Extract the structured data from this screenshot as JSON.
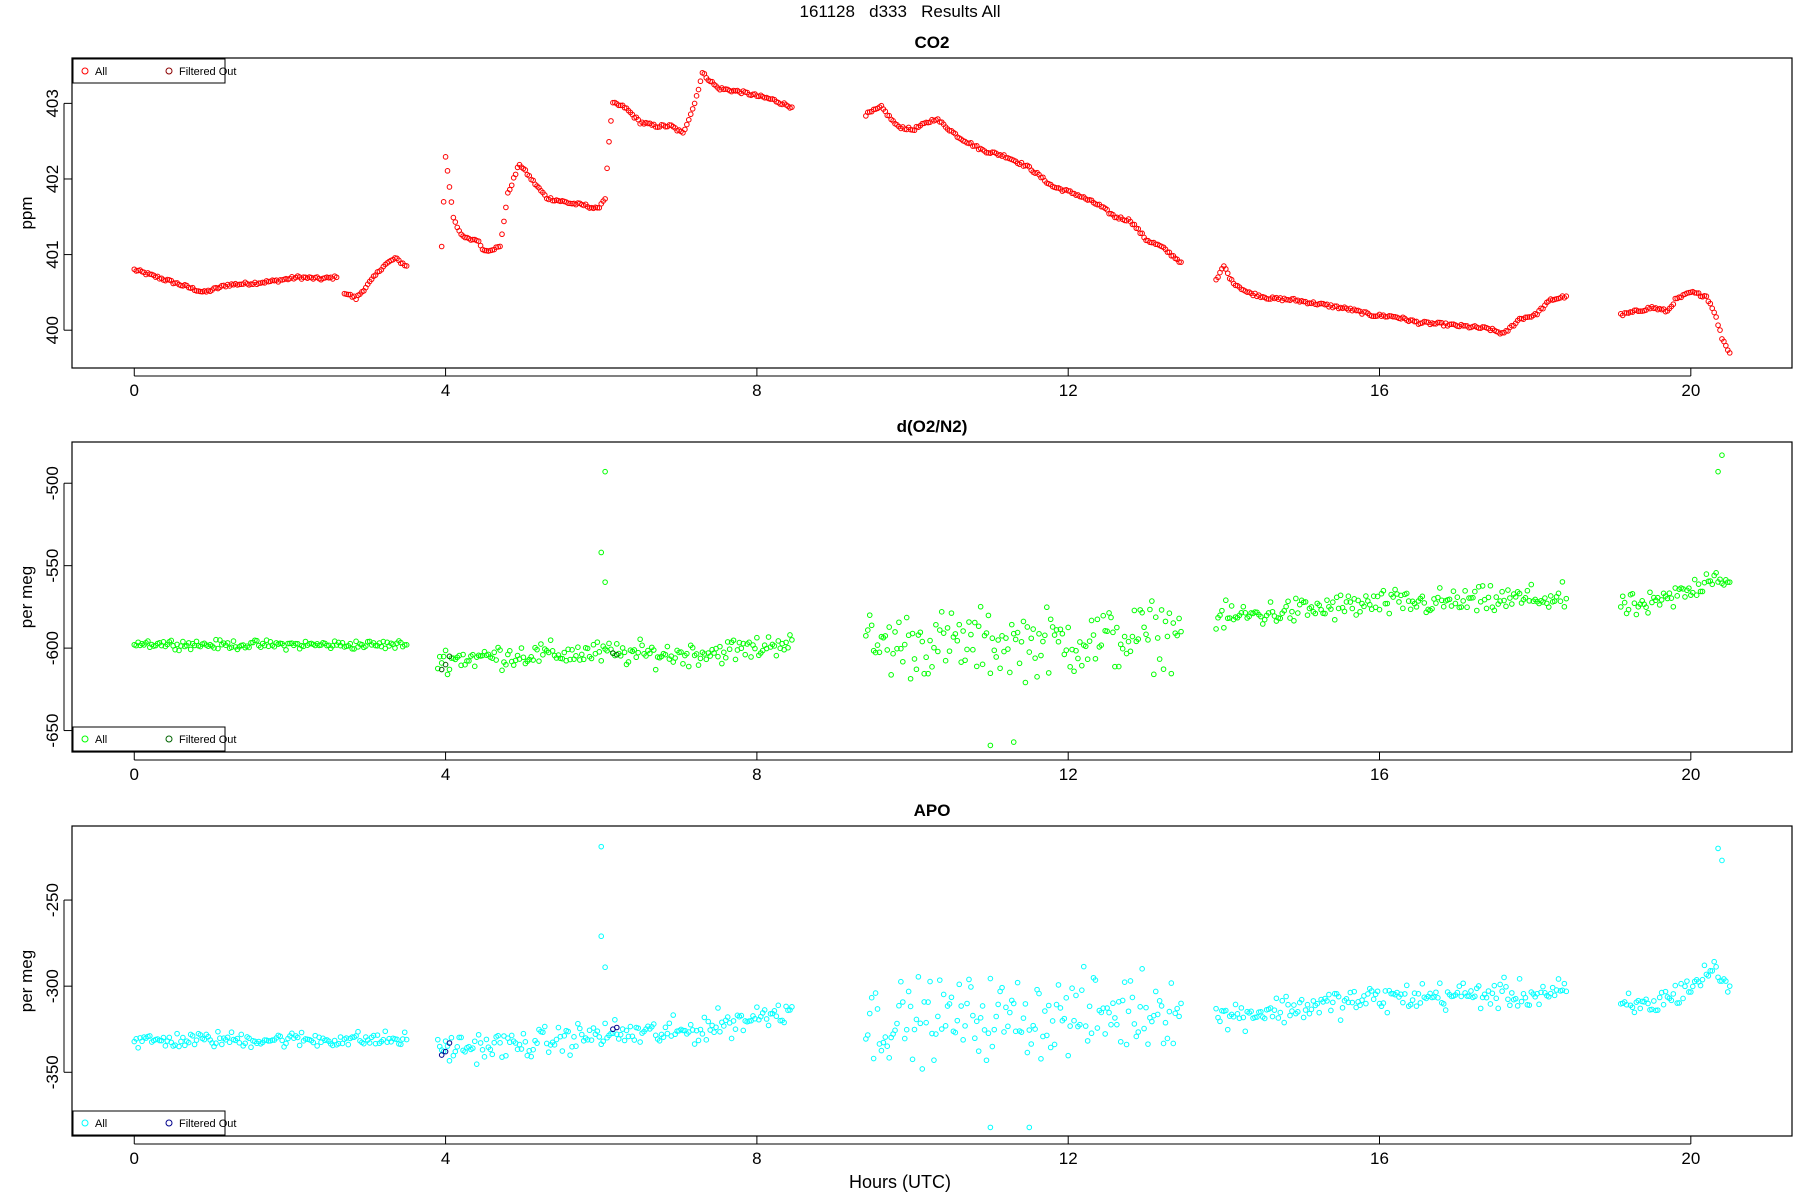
{
  "page": {
    "title": "161128   d333   Results All",
    "xlabel": "Hours (UTC)"
  },
  "chart_data": [
    {
      "type": "scatter",
      "title": "CO2",
      "xlabel": "Hours (UTC)",
      "ylabel": "ppm",
      "xlim": [
        -0.8,
        21.3
      ],
      "ylim": [
        399.5,
        403.6
      ],
      "xticks": [
        0,
        4,
        8,
        12,
        16,
        20
      ],
      "yticks": [
        400,
        401,
        402,
        403
      ],
      "legend": {
        "position": "top-left",
        "entries": [
          "All",
          "Filtered Out"
        ]
      },
      "series": [
        {
          "name": "All",
          "color": "#ff0000",
          "segments": [
            [
              [
                0.0,
                400.8
              ],
              [
                0.3,
                400.7
              ],
              [
                0.6,
                400.6
              ],
              [
                0.9,
                400.5
              ],
              [
                1.2,
                400.6
              ],
              [
                1.5,
                400.62
              ],
              [
                1.8,
                400.65
              ],
              [
                2.1,
                400.7
              ],
              [
                2.4,
                400.68
              ],
              [
                2.6,
                400.7
              ]
            ],
            [
              [
                2.7,
                400.5
              ],
              [
                2.85,
                400.42
              ],
              [
                3.0,
                400.6
              ],
              [
                3.2,
                400.85
              ],
              [
                3.35,
                400.95
              ],
              [
                3.5,
                400.85
              ]
            ],
            [
              [
                3.95,
                401.1
              ],
              [
                4.0,
                402.3
              ],
              [
                4.1,
                401.5
              ],
              [
                4.2,
                401.25
              ],
              [
                4.3,
                401.2
              ],
              [
                4.4,
                401.2
              ],
              [
                4.5,
                401.05
              ],
              [
                4.7,
                401.1
              ],
              [
                4.8,
                401.8
              ],
              [
                4.95,
                402.2
              ],
              [
                5.1,
                402.0
              ],
              [
                5.3,
                401.75
              ],
              [
                5.6,
                401.68
              ],
              [
                5.8,
                401.65
              ],
              [
                5.95,
                401.6
              ],
              [
                6.05,
                401.75
              ],
              [
                6.1,
                402.5
              ],
              [
                6.15,
                403.0
              ],
              [
                6.3,
                402.95
              ],
              [
                6.5,
                402.75
              ],
              [
                6.7,
                402.7
              ],
              [
                6.9,
                402.7
              ],
              [
                7.05,
                402.6
              ],
              [
                7.2,
                403.0
              ],
              [
                7.3,
                403.4
              ],
              [
                7.5,
                403.2
              ],
              [
                7.8,
                403.15
              ],
              [
                8.0,
                403.1
              ],
              [
                8.2,
                403.05
              ],
              [
                8.45,
                402.95
              ]
            ],
            [
              [
                9.4,
                402.85
              ],
              [
                9.6,
                402.95
              ],
              [
                9.8,
                402.7
              ],
              [
                10.0,
                402.65
              ],
              [
                10.3,
                402.8
              ],
              [
                10.6,
                402.55
              ],
              [
                10.9,
                402.38
              ],
              [
                11.2,
                402.3
              ],
              [
                11.5,
                402.15
              ],
              [
                11.8,
                401.9
              ],
              [
                12.1,
                401.8
              ],
              [
                12.4,
                401.65
              ],
              [
                12.6,
                401.5
              ],
              [
                12.8,
                401.45
              ],
              [
                13.0,
                401.2
              ],
              [
                13.2,
                401.1
              ],
              [
                13.45,
                400.9
              ]
            ],
            [
              [
                13.9,
                400.65
              ],
              [
                14.0,
                400.85
              ],
              [
                14.1,
                400.65
              ],
              [
                14.3,
                400.5
              ],
              [
                14.6,
                400.42
              ],
              [
                14.9,
                400.4
              ],
              [
                15.2,
                400.35
              ],
              [
                15.6,
                400.28
              ],
              [
                15.9,
                400.2
              ],
              [
                16.2,
                400.18
              ],
              [
                16.5,
                400.1
              ],
              [
                16.8,
                400.08
              ],
              [
                17.1,
                400.05
              ],
              [
                17.4,
                400.02
              ],
              [
                17.6,
                399.95
              ],
              [
                17.8,
                400.15
              ],
              [
                18.0,
                400.2
              ],
              [
                18.2,
                400.4
              ],
              [
                18.4,
                400.45
              ]
            ],
            [
              [
                19.1,
                400.2
              ],
              [
                19.3,
                400.25
              ],
              [
                19.5,
                400.3
              ],
              [
                19.7,
                400.25
              ],
              [
                19.8,
                400.4
              ],
              [
                20.0,
                400.5
              ],
              [
                20.2,
                400.45
              ],
              [
                20.3,
                400.25
              ],
              [
                20.4,
                399.9
              ],
              [
                20.5,
                399.7
              ]
            ]
          ]
        },
        {
          "name": "Filtered Out",
          "color": "#8b0000",
          "segments": []
        }
      ]
    },
    {
      "type": "scatter",
      "title": "d(O2/N2)",
      "xlabel": "Hours (UTC)",
      "ylabel": "per meg",
      "xlim": [
        -0.8,
        21.3
      ],
      "ylim": [
        -663,
        -475
      ],
      "xticks": [
        0,
        4,
        8,
        12,
        16,
        20
      ],
      "yticks": [
        -650,
        -600,
        -550,
        -500
      ],
      "legend": {
        "position": "bottom-left",
        "entries": [
          "All",
          "Filtered Out"
        ]
      },
      "series": [
        {
          "name": "All",
          "color": "#00ff00",
          "segments": [
            [
              [
                0.0,
                -597
              ],
              [
                1.0,
                -598
              ],
              [
                2.0,
                -598
              ],
              [
                3.0,
                -598
              ],
              [
                3.5,
                -598
              ]
            ],
            [
              [
                3.9,
                -607
              ],
              [
                5.0,
                -604
              ],
              [
                6.0,
                -603
              ],
              [
                7.0,
                -604
              ],
              [
                8.0,
                -600
              ],
              [
                8.45,
                -595
              ]
            ],
            [
              [
                9.4,
                -598
              ],
              [
                10.5,
                -597
              ],
              [
                11.5,
                -597
              ],
              [
                12.5,
                -595
              ],
              [
                13.45,
                -590
              ]
            ],
            [
              [
                13.9,
                -582
              ],
              [
                15.0,
                -577
              ],
              [
                16.0,
                -573
              ],
              [
                17.0,
                -572
              ],
              [
                18.0,
                -570
              ],
              [
                18.4,
                -570
              ]
            ],
            [
              [
                19.1,
                -575
              ],
              [
                19.5,
                -574
              ],
              [
                20.0,
                -565
              ],
              [
                20.3,
                -555
              ],
              [
                20.5,
                -560
              ]
            ]
          ],
          "spread": [
            3,
            8,
            22,
            9,
            8
          ],
          "outliers": [
            [
              6.05,
              -493
            ],
            [
              6.0,
              -542
            ],
            [
              6.05,
              -560
            ],
            [
              20.4,
              -483
            ],
            [
              20.35,
              -493
            ],
            [
              11.0,
              -659
            ],
            [
              11.3,
              -657
            ]
          ]
        },
        {
          "name": "Filtered Out",
          "color": "#006400",
          "points": [
            [
              3.95,
              -613
            ],
            [
              4.0,
              -610
            ],
            [
              4.05,
              -605
            ],
            [
              6.15,
              -603
            ],
            [
              6.2,
              -604
            ]
          ]
        }
      ]
    },
    {
      "type": "scatter",
      "title": "APO",
      "xlabel": "Hours (UTC)",
      "ylabel": "per meg",
      "xlim": [
        -0.8,
        21.3
      ],
      "ylim": [
        -387,
        -207
      ],
      "xticks": [
        0,
        4,
        8,
        12,
        16,
        20
      ],
      "yticks": [
        -350,
        -300,
        -250
      ],
      "legend": {
        "position": "bottom-left",
        "entries": [
          "All",
          "Filtered Out"
        ]
      },
      "series": [
        {
          "name": "All",
          "color": "#00ffff",
          "segments": [
            [
              [
                0.0,
                -332
              ],
              [
                1.0,
                -331
              ],
              [
                2.0,
                -331
              ],
              [
                3.0,
                -331
              ],
              [
                3.5,
                -331
              ]
            ],
            [
              [
                3.9,
                -336
              ],
              [
                5.0,
                -334
              ],
              [
                6.0,
                -328
              ],
              [
                7.0,
                -327
              ],
              [
                8.0,
                -318
              ],
              [
                8.45,
                -312
              ]
            ],
            [
              [
                9.4,
                -322
              ],
              [
                10.5,
                -318
              ],
              [
                11.5,
                -318
              ],
              [
                12.5,
                -316
              ],
              [
                13.45,
                -310
              ]
            ],
            [
              [
                13.9,
                -318
              ],
              [
                15.0,
                -312
              ],
              [
                16.0,
                -307
              ],
              [
                17.0,
                -305
              ],
              [
                18.0,
                -305
              ],
              [
                18.4,
                -303
              ]
            ],
            [
              [
                19.1,
                -312
              ],
              [
                19.5,
                -311
              ],
              [
                20.0,
                -300
              ],
              [
                20.3,
                -290
              ],
              [
                20.5,
                -300
              ]
            ]
          ],
          "spread": [
            5,
            9,
            25,
            9,
            8
          ],
          "outliers": [
            [
              6.0,
              -219
            ],
            [
              6.0,
              -271
            ],
            [
              6.05,
              -289
            ],
            [
              20.35,
              -220
            ],
            [
              20.4,
              -227
            ],
            [
              11.0,
              -382
            ],
            [
              11.5,
              -382
            ]
          ]
        },
        {
          "name": "Filtered Out",
          "color": "#00008b",
          "points": [
            [
              3.95,
              -340
            ],
            [
              4.0,
              -338
            ],
            [
              4.05,
              -333
            ],
            [
              6.15,
              -325
            ],
            [
              6.2,
              -324
            ]
          ]
        }
      ]
    }
  ]
}
